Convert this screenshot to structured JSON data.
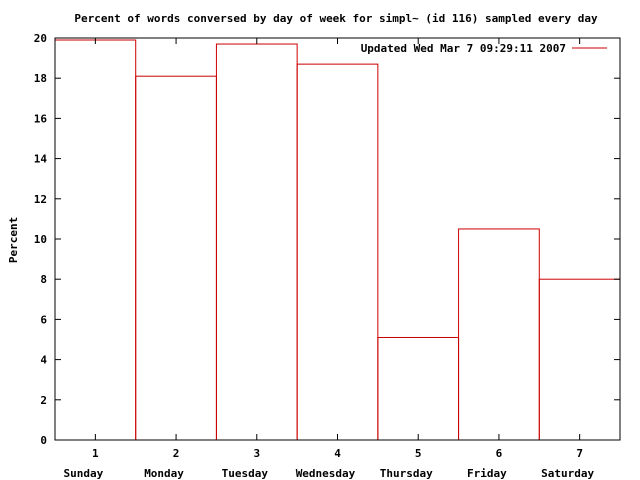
{
  "chart_data": {
    "type": "bar",
    "title": "Percent of words conversed by day of week for simpl~ (id 116) sampled every day",
    "ylabel": "Percent",
    "xlabel": "",
    "legend": {
      "label": "Updated Wed Mar  7 09:29:11 2007",
      "placement": "top-right"
    },
    "ylim": [
      0,
      20
    ],
    "yticks": [
      "0",
      "2",
      "4",
      "6",
      "8",
      "10",
      "12",
      "14",
      "16",
      "18",
      "20"
    ],
    "xticks": [
      "1",
      "2",
      "3",
      "4",
      "5",
      "6",
      "7"
    ],
    "categories": [
      "Sunday",
      "Monday",
      "Tuesday",
      "Wednesday",
      "Thursday",
      "Friday",
      "Saturday"
    ],
    "values": [
      19.9,
      18.1,
      19.7,
      18.7,
      5.1,
      10.5,
      8.0
    ],
    "grid": false,
    "series_color": "#cc0000"
  }
}
